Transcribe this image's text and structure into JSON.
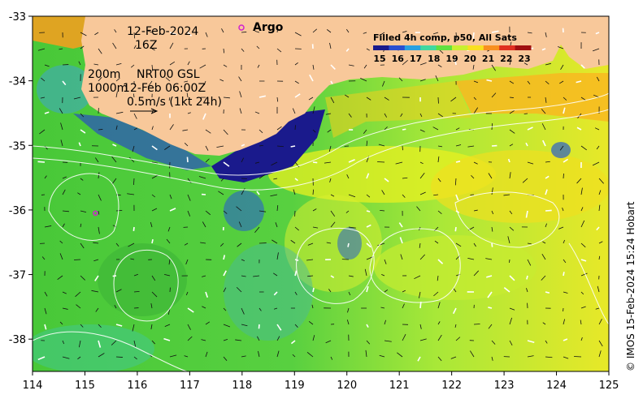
{
  "map": {
    "lon_range": [
      114,
      125
    ],
    "lat_range": [
      -38.5,
      -33
    ],
    "lon_ticks": [
      "114",
      "115",
      "116",
      "117",
      "118",
      "119",
      "120",
      "121",
      "122",
      "123",
      "124",
      "125"
    ],
    "lat_ticks": [
      "-33",
      "-34",
      "-35",
      "-36",
      "-37",
      "-38"
    ]
  },
  "annotations": {
    "date": "12-Feb-2024",
    "hour": "16Z",
    "contour_depths": "200m",
    "contour_depths2": "1000m",
    "current_source": "NRT00 GSL",
    "current_time": "12-Feb 06:00Z",
    "scale_arrow": "0.5m/s (1kt 24h)"
  },
  "legend": {
    "argo_label": "Argo",
    "argo_color": "#d020d0"
  },
  "colorbar": {
    "title": "Filled 4h comp, p50, All Sats",
    "labels": [
      "15",
      "16",
      "17",
      "18",
      "19",
      "20",
      "21",
      "22",
      "23"
    ],
    "colors": [
      "#1a1a8c",
      "#2a4fd0",
      "#2aa0e0",
      "#40d8a0",
      "#60e040",
      "#c8f030",
      "#f8e020",
      "#f89020",
      "#e03020",
      "#a01010"
    ]
  },
  "argo_floats": [
    {
      "lon": 115.2,
      "lat": -36.05
    }
  ],
  "credit": "© IMOS 15-Feb-2024 15:24 Hobart",
  "colors": {
    "land": "#f8c89a",
    "ocean_base": "#58d040",
    "cold": "#1a1a8c"
  }
}
